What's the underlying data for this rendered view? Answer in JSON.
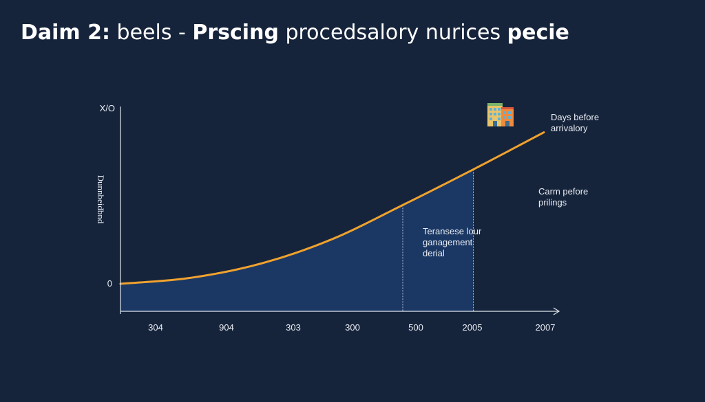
{
  "title": {
    "part1": "Daim 2:",
    "part2": " beels - ",
    "part3": "Prscing",
    "part4": " procedsalory nurices ",
    "part5": "pecie"
  },
  "annotations": {
    "right_top_line1": "Days before",
    "right_top_line2": "arrivalory",
    "right_mid_line1": "Carm pefore",
    "right_mid_line2": "prilings",
    "center_line1": "Teransese lour",
    "center_line2": "ganagement",
    "center_line3": "derial"
  },
  "icons": {
    "hotel": "hotel-building-icon"
  },
  "colors": {
    "background": "#16243b",
    "line": "#f0a22e",
    "area": "#1b3a66",
    "axis": "#dfe5ee"
  },
  "chart_data": {
    "type": "area",
    "title": "",
    "xlabel": "",
    "ylabel": "Dunnbeidbnd",
    "y_top_label": "X/O",
    "y_zero_label": "0",
    "x_tick_labels": [
      "304",
      "904",
      "303",
      "300",
      "500",
      "2005",
      "2007"
    ],
    "x": [
      0,
      1,
      2,
      3,
      4,
      5,
      6
    ],
    "series": [
      {
        "values": [
          0,
          0.08,
          0.27,
          0.59,
          1.04,
          1.51,
          2.0
        ]
      }
    ],
    "shaded_to_index": 5,
    "dashed_markers_at": [
      4,
      5
    ],
    "ylim": [
      0,
      2.25
    ],
    "grid": false,
    "legend": "none"
  }
}
